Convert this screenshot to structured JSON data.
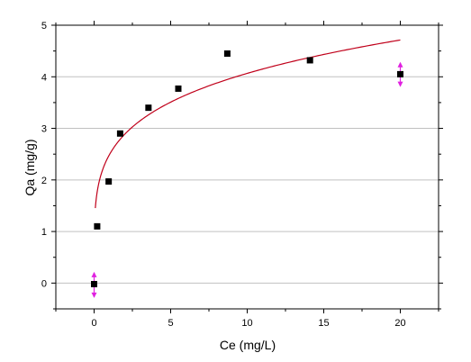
{
  "chart_data": {
    "type": "scatter",
    "xlabel": "Ce (mg/L)",
    "ylabel": "Qa (mg/g)",
    "xlim": [
      -2.5,
      22.5
    ],
    "ylim": [
      -0.5,
      5
    ],
    "grid": "horizontal",
    "x_major_ticks": [
      0,
      5,
      10,
      15,
      20
    ],
    "x_minor_ticks": [
      -2.5,
      2.5,
      7.5,
      12.5,
      17.5,
      22.5
    ],
    "y_major_ticks": [
      0,
      1,
      2,
      3,
      4,
      5
    ],
    "y_minor_ticks": [
      -0.5,
      0.5,
      1.5,
      2.5,
      3.5,
      4.5
    ],
    "colors": {
      "points": "#000000",
      "fit": "#c0001a",
      "error_bars": "#e020e0",
      "grid": "#c0c0c0"
    },
    "series": [
      {
        "type": "scatter",
        "points": [
          {
            "x": 0.0,
            "y": -0.02
          },
          {
            "x": 0.2,
            "y": 1.1
          },
          {
            "x": 0.95,
            "y": 1.97
          },
          {
            "x": 1.7,
            "y": 2.9
          },
          {
            "x": 3.55,
            "y": 3.4
          },
          {
            "x": 5.5,
            "y": 3.77
          },
          {
            "x": 8.7,
            "y": 4.45
          },
          {
            "x": 14.1,
            "y": 4.32
          },
          {
            "x": 20.0,
            "y": 4.05
          }
        ],
        "error_bars": [
          {
            "x": 0.0,
            "low": -0.27,
            "high": 0.2
          },
          {
            "x": 20.0,
            "low": 3.82,
            "high": 4.27
          }
        ]
      },
      {
        "type": "line",
        "model": "freundlich",
        "k": 2.49,
        "n": 0.213,
        "x_start": 0.08,
        "x_end": 20.0
      }
    ]
  }
}
